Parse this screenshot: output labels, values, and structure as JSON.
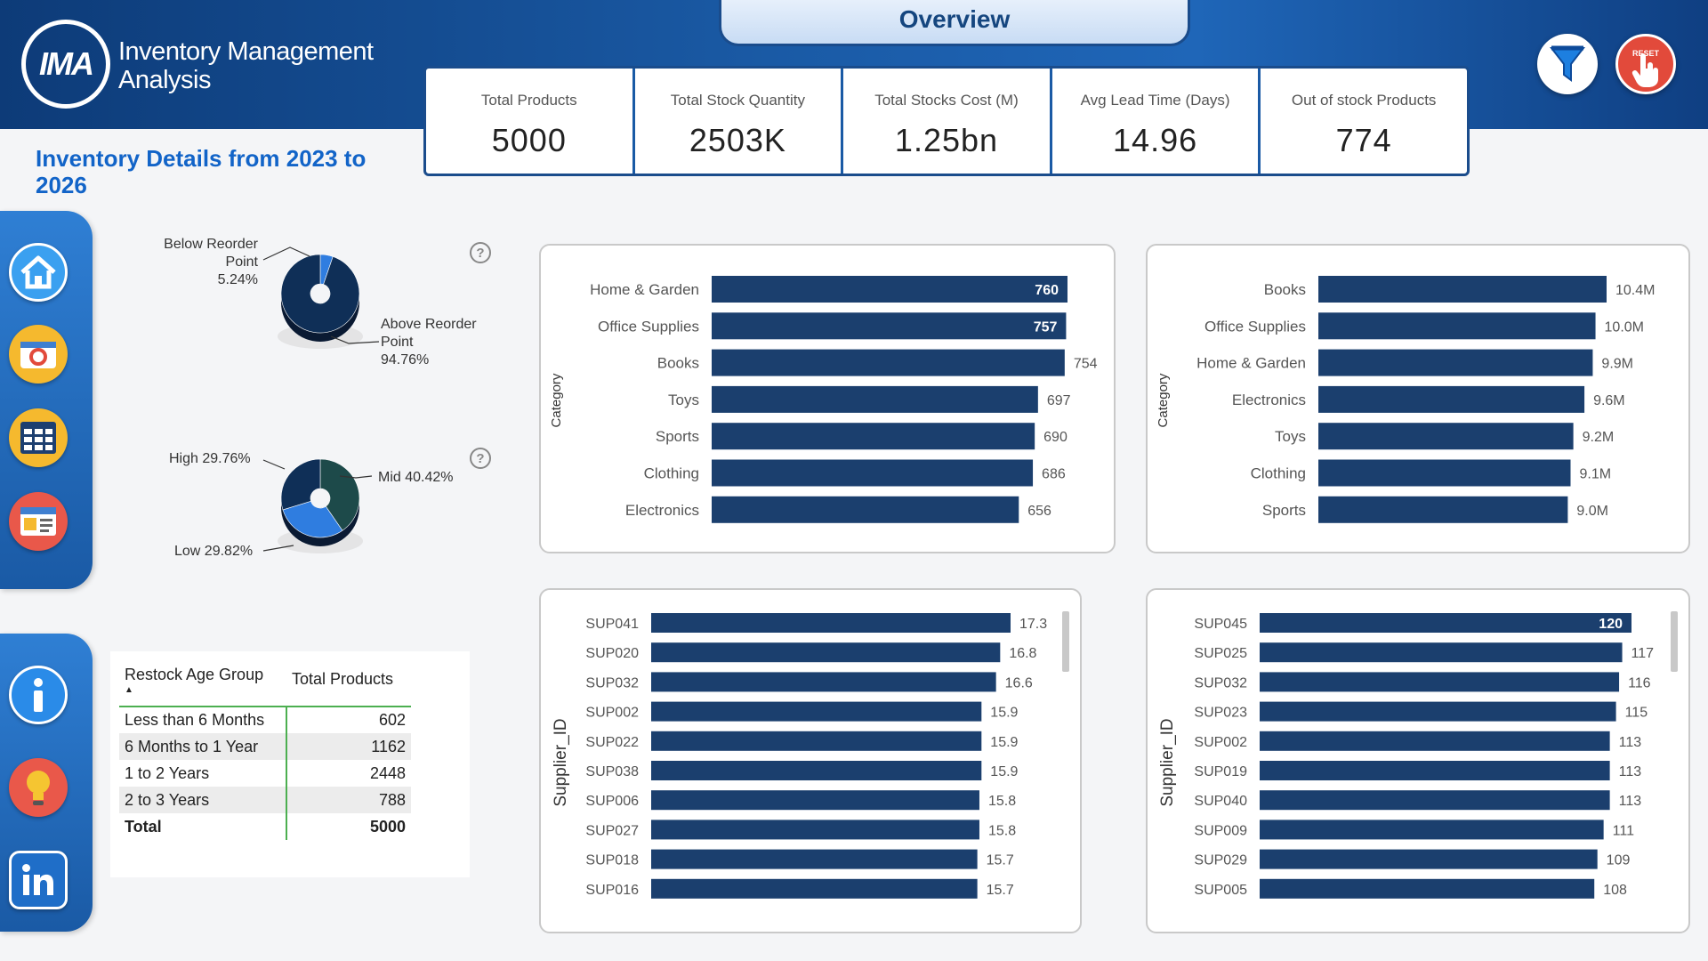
{
  "header": {
    "logo_text": "IMA",
    "title_line1": "Inventory Management",
    "title_line2": "Analysis",
    "overview_tab": "Overview",
    "reset_label": "RESET"
  },
  "kpis": [
    {
      "label": "Total Products",
      "value": "5000"
    },
    {
      "label": "Total Stock Quantity",
      "value": "2503K"
    },
    {
      "label": "Total Stocks Cost (M)",
      "value": "1.25bn"
    },
    {
      "label": "Avg Lead Time (Days)",
      "value": "14.96"
    },
    {
      "label": "Out of stock Products",
      "value": "774"
    }
  ],
  "page_title": "Inventory Details from 2023 to 2026",
  "colors": {
    "bar": "#1b3f6e",
    "accent": "#1264c8",
    "donut_light": "#2f7de0",
    "donut_dark": "#0f2f57",
    "donut_teal": "#1d4a4a"
  },
  "nav_icons": [
    "home-icon",
    "camera-icon",
    "table-grid-icon",
    "report-card-icon",
    "info-icon",
    "lightbulb-icon",
    "linkedin-icon"
  ],
  "reorder_donut": {
    "below_label_l1": "Below Reorder",
    "below_label_l2": "Point",
    "below_pct": "5.24%",
    "above_label_l1": "Above Reorder",
    "above_label_l2": "Point",
    "above_pct": "94.76%",
    "below_value": 5.24,
    "above_value": 94.76
  },
  "priority_donut": {
    "high_label": "High 29.76%",
    "mid_label": "Mid 40.42%",
    "low_label": "Low 29.82%",
    "high_value": 29.76,
    "mid_value": 40.42,
    "low_value": 29.82
  },
  "restock_table": {
    "col1": "Restock Age Group",
    "col2": "Total Products",
    "rows": [
      {
        "group": "Less than 6 Months",
        "value": "602"
      },
      {
        "group": "6 Months to 1 Year",
        "value": "1162"
      },
      {
        "group": "1 to 2 Years",
        "value": "2448"
      },
      {
        "group": "2 to 3 Years",
        "value": "788"
      }
    ],
    "total_label": "Total",
    "total_value": "5000"
  },
  "chart_data": [
    {
      "type": "bar",
      "orientation": "horizontal",
      "ylabel": "Category",
      "categories": [
        "Home & Garden",
        "Office Supplies",
        "Books",
        "Toys",
        "Sports",
        "Clothing",
        "Electronics"
      ],
      "values": [
        760,
        757,
        754,
        697,
        690,
        686,
        656
      ],
      "labels": [
        "760",
        "757",
        "754",
        "697",
        "690",
        "686",
        "656"
      ],
      "label_inside": [
        true,
        true,
        false,
        false,
        false,
        false,
        false
      ],
      "xlim": [
        0,
        760
      ]
    },
    {
      "type": "bar",
      "orientation": "horizontal",
      "ylabel": "Category",
      "categories": [
        "Books",
        "Office Supplies",
        "Home & Garden",
        "Electronics",
        "Toys",
        "Clothing",
        "Sports"
      ],
      "values": [
        10.4,
        10.0,
        9.9,
        9.6,
        9.2,
        9.1,
        9.0
      ],
      "labels": [
        "10.4M",
        "10.0M",
        "9.9M",
        "9.6M",
        "9.2M",
        "9.1M",
        "9.0M"
      ],
      "label_inside": [
        false,
        false,
        false,
        false,
        false,
        false,
        false
      ],
      "xlim": [
        0,
        10.4
      ]
    },
    {
      "type": "bar",
      "orientation": "horizontal",
      "ylabel": "Supplier_ID",
      "categories": [
        "SUP041",
        "SUP020",
        "SUP032",
        "SUP002",
        "SUP022",
        "SUP038",
        "SUP006",
        "SUP027",
        "SUP018",
        "SUP016"
      ],
      "values": [
        17.3,
        16.8,
        16.6,
        15.9,
        15.9,
        15.9,
        15.8,
        15.8,
        15.7,
        15.7
      ],
      "labels": [
        "17.3",
        "16.8",
        "16.6",
        "15.9",
        "15.9",
        "15.9",
        "15.8",
        "15.8",
        "15.7",
        "15.7"
      ],
      "label_inside": [
        false,
        false,
        false,
        false,
        false,
        false,
        false,
        false,
        false,
        false
      ],
      "xlim": [
        0,
        17.3
      ]
    },
    {
      "type": "bar",
      "orientation": "horizontal",
      "ylabel": "Supplier_ID",
      "categories": [
        "SUP045",
        "SUP025",
        "SUP032",
        "SUP023",
        "SUP002",
        "SUP019",
        "SUP040",
        "SUP009",
        "SUP029",
        "SUP005"
      ],
      "values": [
        120,
        117,
        116,
        115,
        113,
        113,
        113,
        111,
        109,
        108
      ],
      "labels": [
        "120",
        "117",
        "116",
        "115",
        "113",
        "113",
        "113",
        "111",
        "109",
        "108"
      ],
      "label_inside": [
        true,
        false,
        false,
        false,
        false,
        false,
        false,
        false,
        false,
        false
      ],
      "xlim": [
        0,
        120
      ]
    }
  ]
}
